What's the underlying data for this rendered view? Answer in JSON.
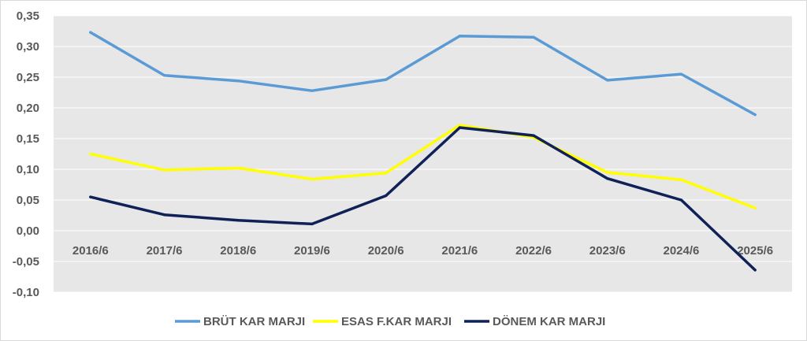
{
  "chart_data": {
    "type": "line",
    "title": "",
    "xlabel": "",
    "ylabel": "",
    "categories": [
      "2016/6",
      "2017/6",
      "2018/6",
      "2019/6",
      "2020/6",
      "2021/6",
      "2022/6",
      "2023/6",
      "2024/6",
      "2025/6"
    ],
    "ylim": [
      -0.1,
      0.35
    ],
    "yticks": [
      "-0,10",
      "-0,05",
      "0,00",
      "0,05",
      "0,10",
      "0,15",
      "0,20",
      "0,25",
      "0,30",
      "0,35"
    ],
    "ytick_values": [
      -0.1,
      -0.05,
      0.0,
      0.05,
      0.1,
      0.15,
      0.2,
      0.25,
      0.3,
      0.35
    ],
    "grid": true,
    "legend_position": "bottom",
    "plot_background": "#e7e7e7",
    "series": [
      {
        "name": "BRÜT KAR MARJI",
        "color": "#5b9bd5",
        "values": [
          0.323,
          0.253,
          0.244,
          0.228,
          0.246,
          0.317,
          0.315,
          0.245,
          0.255,
          0.189
        ]
      },
      {
        "name": "ESAS F.KAR MARJI",
        "color": "#ffff00",
        "values": [
          0.125,
          0.099,
          0.102,
          0.084,
          0.094,
          0.172,
          0.152,
          0.095,
          0.083,
          0.037
        ]
      },
      {
        "name": "DÖNEM KAR MARJI",
        "color": "#0f2157",
        "values": [
          0.055,
          0.026,
          0.017,
          0.011,
          0.057,
          0.168,
          0.155,
          0.085,
          0.05,
          -0.064
        ]
      }
    ]
  }
}
